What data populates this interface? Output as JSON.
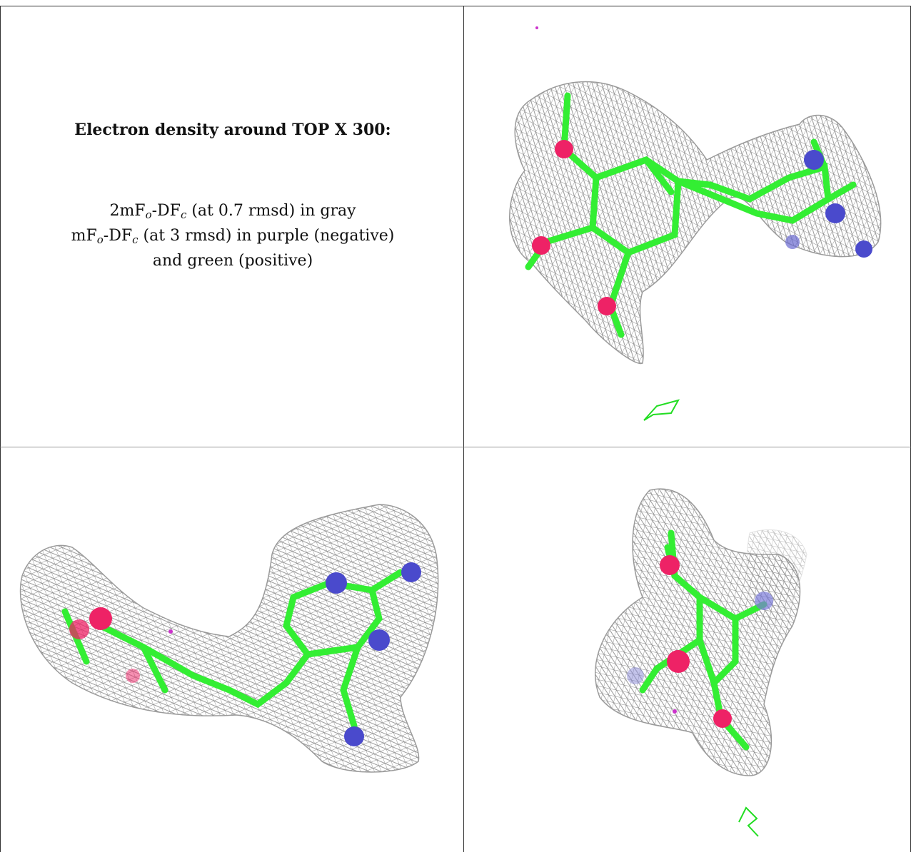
{
  "caption": {
    "title": "Electron density around TOP X 300:",
    "line1": {
      "prefix": "2mF",
      "sub1": "o",
      "mid": "-DF",
      "sub2": "c",
      "suffix": " (at 0.7 rmsd) in gray"
    },
    "line2": {
      "prefix": "mF",
      "sub1": "o",
      "mid": "-DF",
      "sub2": "c",
      "suffix": " (at 3 rmsd) in purple (negative)"
    },
    "line3": "and green (positive)"
  },
  "colors": {
    "mesh_gray": "#8c8c8c",
    "carbon_green": "#33ee33",
    "oxygen_red": "#ee2266",
    "nitrogen_blue": "#4a4acc",
    "negative_purple": "#cc33cc",
    "positive_green": "#22dd22"
  },
  "panels": [
    "view-top-right",
    "view-bottom-left",
    "view-bottom-right"
  ]
}
